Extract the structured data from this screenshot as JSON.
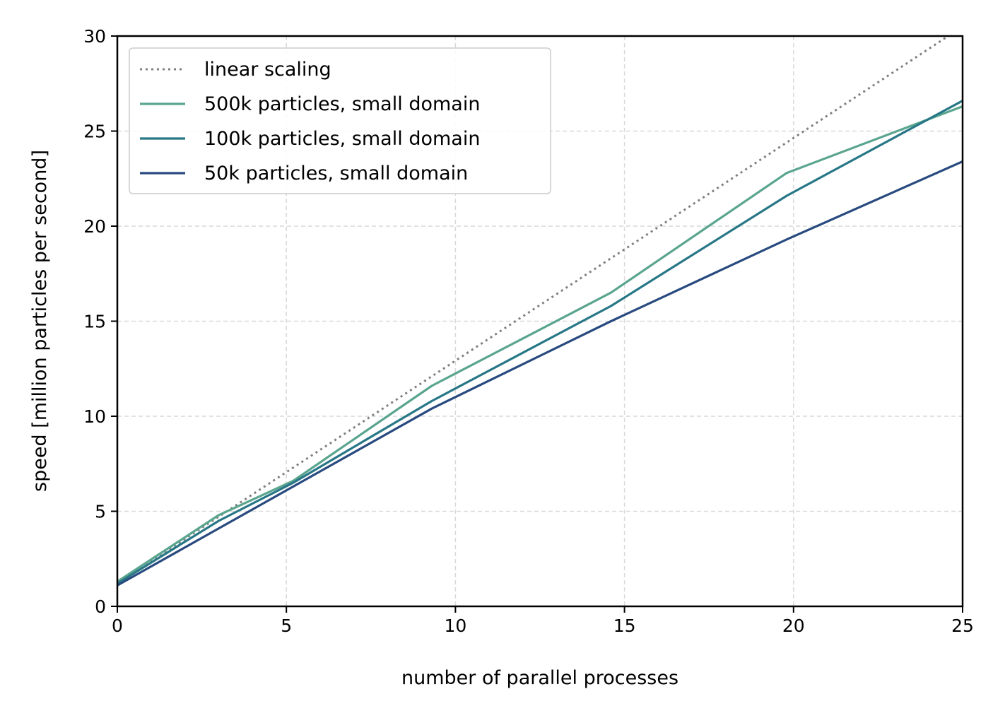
{
  "chart_data": {
    "type": "line",
    "xlabel": "number of parallel processes",
    "ylabel": "speed [million particles per second]",
    "xlim": [
      0,
      25
    ],
    "ylim": [
      0,
      30
    ],
    "xticks": [
      "0",
      "5",
      "10",
      "15",
      "20",
      "25"
    ],
    "yticks": [
      "0",
      "5",
      "10",
      "15",
      "20",
      "25",
      "30"
    ],
    "grid": true,
    "legend_position": "top-left",
    "series": [
      {
        "name": "linear scaling",
        "style": "dotted",
        "color": "#808080",
        "x": [
          0,
          25
        ],
        "y": [
          1.2,
          30.5
        ]
      },
      {
        "name": "500k particles, small domain",
        "style": "solid",
        "color": "#5aa58f",
        "x": [
          0,
          1.2,
          3,
          5.2,
          9.3,
          14.6,
          19.8,
          25
        ],
        "y": [
          1.3,
          2.7,
          4.8,
          6.6,
          11.6,
          16.5,
          22.8,
          26.3
        ]
      },
      {
        "name": "100k particles, small domain",
        "style": "solid",
        "color": "#277787",
        "x": [
          0,
          3,
          5.2,
          9.3,
          14.6,
          19.8,
          25
        ],
        "y": [
          1.2,
          4.5,
          6.5,
          10.8,
          15.8,
          21.6,
          26.6
        ]
      },
      {
        "name": "50k particles, small domain",
        "style": "solid",
        "color": "#284a7f",
        "x": [
          0,
          5.2,
          9.3,
          14.6,
          19.8,
          25
        ],
        "y": [
          1.1,
          6.3,
          10.4,
          15.0,
          19.3,
          23.4
        ]
      }
    ]
  }
}
